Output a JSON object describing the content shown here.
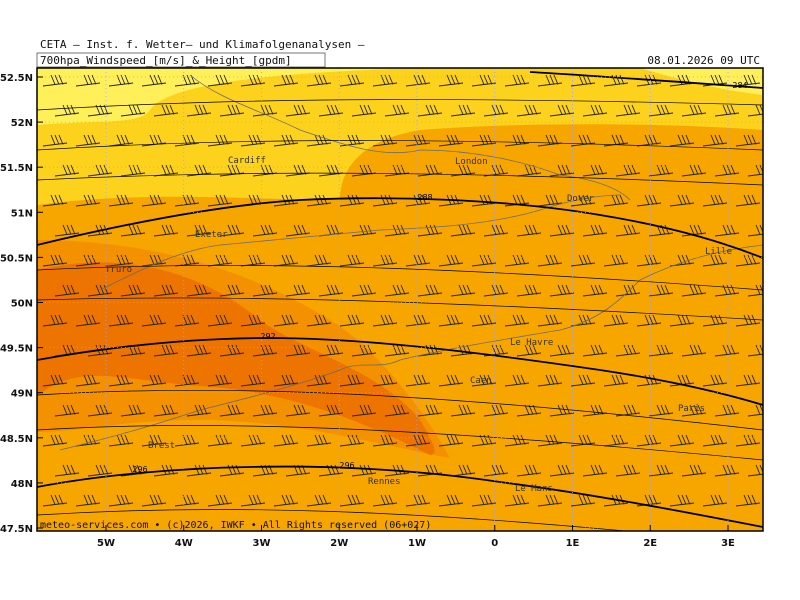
{
  "header": {
    "title": "CETA — Inst. f. Wetter— und Klimafolgenanalysen —",
    "subtitle": "700hpa_Windspeed_[m/s]_&_Height_[gpdm]",
    "date": "08.01.2026 09 UTC"
  },
  "axes": {
    "lat_labels": [
      "52.5N",
      "52N",
      "51.5N",
      "51N",
      "50.5N",
      "50N",
      "49.5N",
      "49N",
      "48.5N",
      "48N",
      "47.5N"
    ],
    "lon_labels": [
      "5W",
      "4W",
      "3W",
      "2W",
      "1W",
      "0",
      "1E",
      "2E",
      "3E"
    ]
  },
  "contour_labels": [
    284,
    288,
    292,
    296,
    296
  ],
  "cities": [
    "Cardiff",
    "London",
    "Dover",
    "Exeter",
    "Truro",
    "Lille",
    "Le Havre",
    "Caen",
    "Paris",
    "Brest",
    "Rennes",
    "Le Mans"
  ],
  "footer": "meteo-services.com • (c)2026, IWKF • All Rights reserved (06+027)"
}
